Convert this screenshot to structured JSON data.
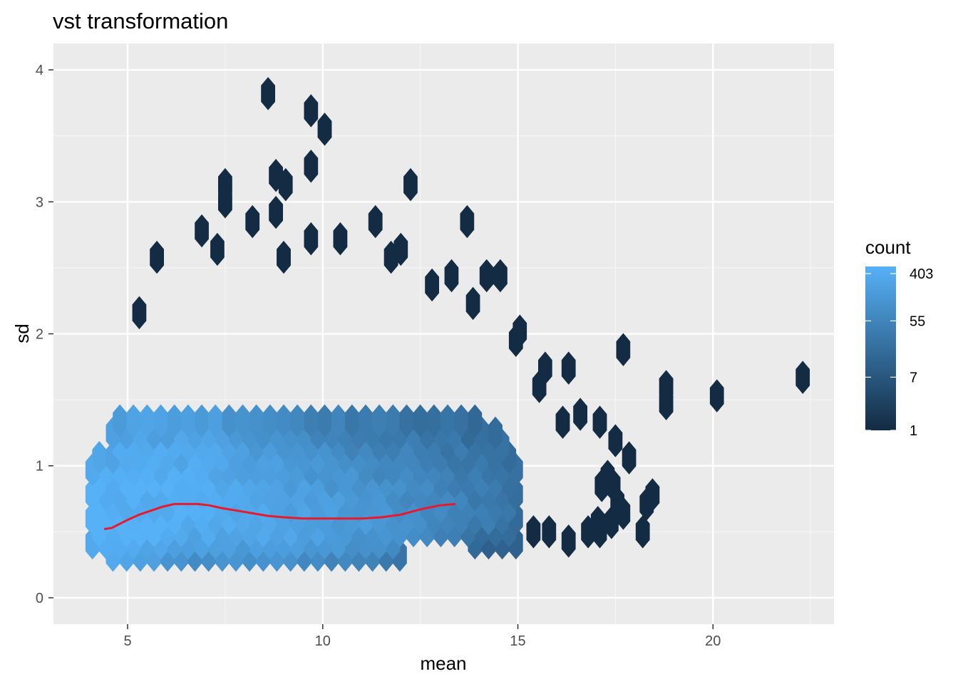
{
  "chart_data": {
    "type": "heatmap",
    "subtype": "hexbin",
    "title": "vst transformation",
    "xlabel": "mean",
    "ylabel": "sd",
    "xlim": [
      3.1,
      23.1
    ],
    "ylim": [
      -0.2,
      4.2
    ],
    "x_ticks": [
      5,
      10,
      15,
      20
    ],
    "y_ticks": [
      0,
      1,
      2,
      3,
      4
    ],
    "grid": true,
    "legend": {
      "title": "count",
      "placement": "right",
      "scale": "log",
      "min": 1,
      "max": 403,
      "labels": [
        403,
        55,
        7,
        1
      ],
      "color_low": "#132B43",
      "color_high": "#56B1F7"
    },
    "trend_line": {
      "color": "#e8192c",
      "x": [
        4.4,
        4.6,
        4.8,
        5.0,
        5.3,
        5.6,
        5.9,
        6.2,
        6.5,
        6.8,
        7.1,
        7.4,
        7.8,
        8.2,
        8.6,
        9.0,
        9.5,
        10.0,
        10.5,
        11.0,
        11.5,
        12.0,
        12.5,
        13.0,
        13.4
      ],
      "y": [
        0.52,
        0.53,
        0.56,
        0.59,
        0.63,
        0.66,
        0.69,
        0.71,
        0.71,
        0.71,
        0.7,
        0.68,
        0.66,
        0.64,
        0.62,
        0.61,
        0.6,
        0.6,
        0.6,
        0.6,
        0.61,
        0.63,
        0.67,
        0.7,
        0.71
      ]
    },
    "outlier_points": [
      {
        "x": 8.6,
        "y": 3.82,
        "count": 1
      },
      {
        "x": 9.7,
        "y": 3.69,
        "count": 1
      },
      {
        "x": 10.05,
        "y": 3.55,
        "count": 1
      },
      {
        "x": 9.7,
        "y": 3.27,
        "count": 1
      },
      {
        "x": 8.8,
        "y": 3.2,
        "count": 1
      },
      {
        "x": 7.5,
        "y": 3.13,
        "count": 1
      },
      {
        "x": 9.05,
        "y": 3.13,
        "count": 1
      },
      {
        "x": 12.25,
        "y": 3.13,
        "count": 1
      },
      {
        "x": 7.5,
        "y": 3.0,
        "count": 1
      },
      {
        "x": 8.8,
        "y": 2.92,
        "count": 1
      },
      {
        "x": 13.7,
        "y": 2.85,
        "count": 1
      },
      {
        "x": 11.35,
        "y": 2.85,
        "count": 1
      },
      {
        "x": 8.2,
        "y": 2.85,
        "count": 1
      },
      {
        "x": 6.9,
        "y": 2.78,
        "count": 1
      },
      {
        "x": 9.7,
        "y": 2.72,
        "count": 1
      },
      {
        "x": 10.45,
        "y": 2.72,
        "count": 1
      },
      {
        "x": 12.0,
        "y": 2.64,
        "count": 1
      },
      {
        "x": 7.3,
        "y": 2.64,
        "count": 1
      },
      {
        "x": 5.75,
        "y": 2.58,
        "count": 1
      },
      {
        "x": 9.0,
        "y": 2.58,
        "count": 1
      },
      {
        "x": 11.75,
        "y": 2.58,
        "count": 1
      },
      {
        "x": 13.3,
        "y": 2.44,
        "count": 1
      },
      {
        "x": 14.2,
        "y": 2.44,
        "count": 1
      },
      {
        "x": 14.55,
        "y": 2.44,
        "count": 1
      },
      {
        "x": 12.8,
        "y": 2.37,
        "count": 1
      },
      {
        "x": 13.85,
        "y": 2.23,
        "count": 1
      },
      {
        "x": 5.3,
        "y": 2.16,
        "count": 1
      },
      {
        "x": 15.05,
        "y": 2.02,
        "count": 1
      },
      {
        "x": 14.95,
        "y": 1.95,
        "count": 1
      },
      {
        "x": 17.7,
        "y": 1.88,
        "count": 1
      },
      {
        "x": 15.7,
        "y": 1.74,
        "count": 1
      },
      {
        "x": 16.3,
        "y": 1.74,
        "count": 1
      },
      {
        "x": 22.3,
        "y": 1.67,
        "count": 1
      },
      {
        "x": 18.8,
        "y": 1.6,
        "count": 1
      },
      {
        "x": 15.55,
        "y": 1.6,
        "count": 1
      },
      {
        "x": 20.1,
        "y": 1.53,
        "count": 1
      },
      {
        "x": 18.8,
        "y": 1.47,
        "count": 1
      },
      {
        "x": 16.6,
        "y": 1.39,
        "count": 1
      },
      {
        "x": 17.1,
        "y": 1.33,
        "count": 1
      },
      {
        "x": 16.15,
        "y": 1.33,
        "count": 1
      },
      {
        "x": 17.5,
        "y": 1.19,
        "count": 1
      },
      {
        "x": 17.85,
        "y": 1.06,
        "count": 1
      },
      {
        "x": 17.3,
        "y": 0.92,
        "count": 1
      },
      {
        "x": 17.15,
        "y": 0.85,
        "count": 1
      },
      {
        "x": 17.45,
        "y": 0.85,
        "count": 1
      },
      {
        "x": 18.45,
        "y": 0.78,
        "count": 1
      },
      {
        "x": 17.55,
        "y": 0.72,
        "count": 1
      },
      {
        "x": 18.3,
        "y": 0.71,
        "count": 1
      },
      {
        "x": 17.7,
        "y": 0.64,
        "count": 1
      },
      {
        "x": 17.05,
        "y": 0.57,
        "count": 1
      },
      {
        "x": 17.4,
        "y": 0.57,
        "count": 1
      },
      {
        "x": 16.8,
        "y": 0.5,
        "count": 1
      },
      {
        "x": 17.1,
        "y": 0.5,
        "count": 1
      },
      {
        "x": 18.2,
        "y": 0.5,
        "count": 1
      },
      {
        "x": 16.3,
        "y": 0.43,
        "count": 1
      },
      {
        "x": 15.8,
        "y": 0.5,
        "count": 1
      },
      {
        "x": 15.4,
        "y": 0.5,
        "count": 1
      }
    ],
    "density_core": {
      "description_free": true,
      "x_range": [
        4.0,
        16.0
      ],
      "peak": {
        "x": 4.6,
        "y": 0.52,
        "count": 403
      },
      "sd_center": 0.6,
      "sd_spread": 0.32
    }
  }
}
